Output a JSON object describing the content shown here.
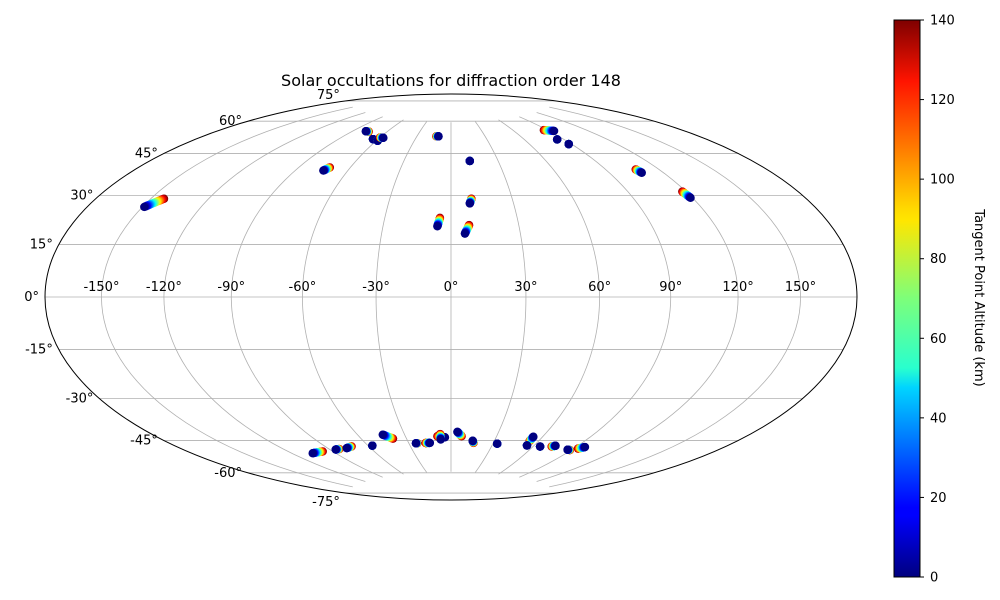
{
  "chart_data": {
    "type": "scatter",
    "projection": "hammer",
    "title": "Solar occultations for diffraction order 148",
    "xlabel": "",
    "ylabel": "",
    "grid": true,
    "lon_ticks": [
      -150,
      -120,
      -90,
      -60,
      -30,
      0,
      30,
      60,
      90,
      120,
      150
    ],
    "lon_tick_labels": [
      "-150°",
      "-120°",
      "-90°",
      "-60°",
      "-30°",
      "0°",
      "30°",
      "60°",
      "90°",
      "120°",
      "150°"
    ],
    "lat_ticks": [
      75,
      60,
      45,
      30,
      15,
      0,
      -15,
      -30,
      -45,
      -60,
      -75
    ],
    "lat_tick_labels": [
      "75°",
      "60°",
      "45°",
      "30°",
      "15°",
      "0°",
      "-15°",
      "-30°",
      "-45°",
      "-60°",
      "-75°"
    ],
    "colorbar": {
      "label": "Tangent Point Altitude (km)",
      "colormap": "jet",
      "range": [
        0,
        140
      ],
      "ticks": [
        0,
        20,
        40,
        60,
        80,
        100,
        120,
        140
      ],
      "tick_labels": [
        "0",
        "20",
        "40",
        "60",
        "80",
        "100",
        "120",
        "140"
      ]
    },
    "tracks": [
      {
        "lon0": -149,
        "lat0": 29.5,
        "lon1": -143,
        "lat1": 33
      },
      {
        "lon0": -74,
        "lat0": 50,
        "lon1": -72,
        "lat1": 51.5
      },
      {
        "lon0": -79,
        "lat0": 68,
        "lon1": -76,
        "lat1": 68
      },
      {
        "lon0": -64,
        "lat0": 65,
        "lon1": -64,
        "lat1": 65
      },
      {
        "lon0": -59,
        "lat0": 64.5,
        "lon1": -59,
        "lat1": 64.5
      },
      {
        "lon0": -57,
        "lat0": 66,
        "lon1": -60,
        "lat1": 66
      },
      {
        "lon0": -11,
        "lat0": 68,
        "lon1": -13,
        "lat1": 68
      },
      {
        "lon0": 12,
        "lat0": 56.5,
        "lon1": 12,
        "lat1": 56.5
      },
      {
        "lon0": 9,
        "lat0": 38,
        "lon1": 10,
        "lat1": 40
      },
      {
        "lon0": -6,
        "lat0": 28.5,
        "lon1": -5,
        "lat1": 32
      },
      {
        "lon0": 6,
        "lat0": 25.5,
        "lon1": 8,
        "lat1": 29
      },
      {
        "lon0": 94,
        "lat0": 67,
        "lon1": 87,
        "lat1": 68
      },
      {
        "lon0": 85,
        "lat0": 63.5,
        "lon1": 85,
        "lat1": 63.5
      },
      {
        "lon0": 88,
        "lat0": 61,
        "lon1": 88,
        "lat1": 61
      },
      {
        "lon0": 108,
        "lat0": 46.5,
        "lon1": 107,
        "lat1": 48
      },
      {
        "lon0": 119,
        "lat0": 35.5,
        "lon1": 118,
        "lat1": 38
      },
      {
        "lon0": -106,
        "lat0": -61,
        "lon1": -97,
        "lat1": -61
      },
      {
        "lon0": -86,
        "lat0": -61,
        "lon1": -83,
        "lat1": -61
      },
      {
        "lon0": -77,
        "lat0": -61,
        "lon1": -72,
        "lat1": -60.5
      },
      {
        "lon0": -57,
        "lat0": -61,
        "lon1": -57,
        "lat1": -61
      },
      {
        "lon0": -44,
        "lat0": -56.5,
        "lon1": -39,
        "lat1": -58.5
      },
      {
        "lon0": -25,
        "lat0": -61,
        "lon1": -24,
        "lat1": -61
      },
      {
        "lon0": -15,
        "lat0": -61,
        "lon1": -18,
        "lat1": -61
      },
      {
        "lon0": -4,
        "lat0": -58.5,
        "lon1": -9,
        "lat1": -58
      },
      {
        "lon0": -7,
        "lat0": -59.5,
        "lon1": -7,
        "lat1": -57
      },
      {
        "lon0": 4,
        "lat0": -56,
        "lon1": 7,
        "lat1": -58
      },
      {
        "lon0": 15,
        "lat0": -60,
        "lon1": 16,
        "lat1": -61
      },
      {
        "lon0": 33,
        "lat0": -61,
        "lon1": 33,
        "lat1": -61
      },
      {
        "lon0": 54,
        "lat0": -57,
        "lon1": 54,
        "lat1": -59
      },
      {
        "lon0": 55,
        "lat0": -61,
        "lon1": 55,
        "lat1": -61
      },
      {
        "lon0": 65,
        "lat0": -61,
        "lon1": 65,
        "lat1": -61
      },
      {
        "lon0": 75,
        "lat0": -60,
        "lon1": 73,
        "lat1": -60.5
      },
      {
        "lon0": 87,
        "lat0": -61,
        "lon1": 89,
        "lat1": -61
      },
      {
        "lon0": 96,
        "lat0": -59,
        "lon1": 93,
        "lat1": -60
      }
    ]
  }
}
